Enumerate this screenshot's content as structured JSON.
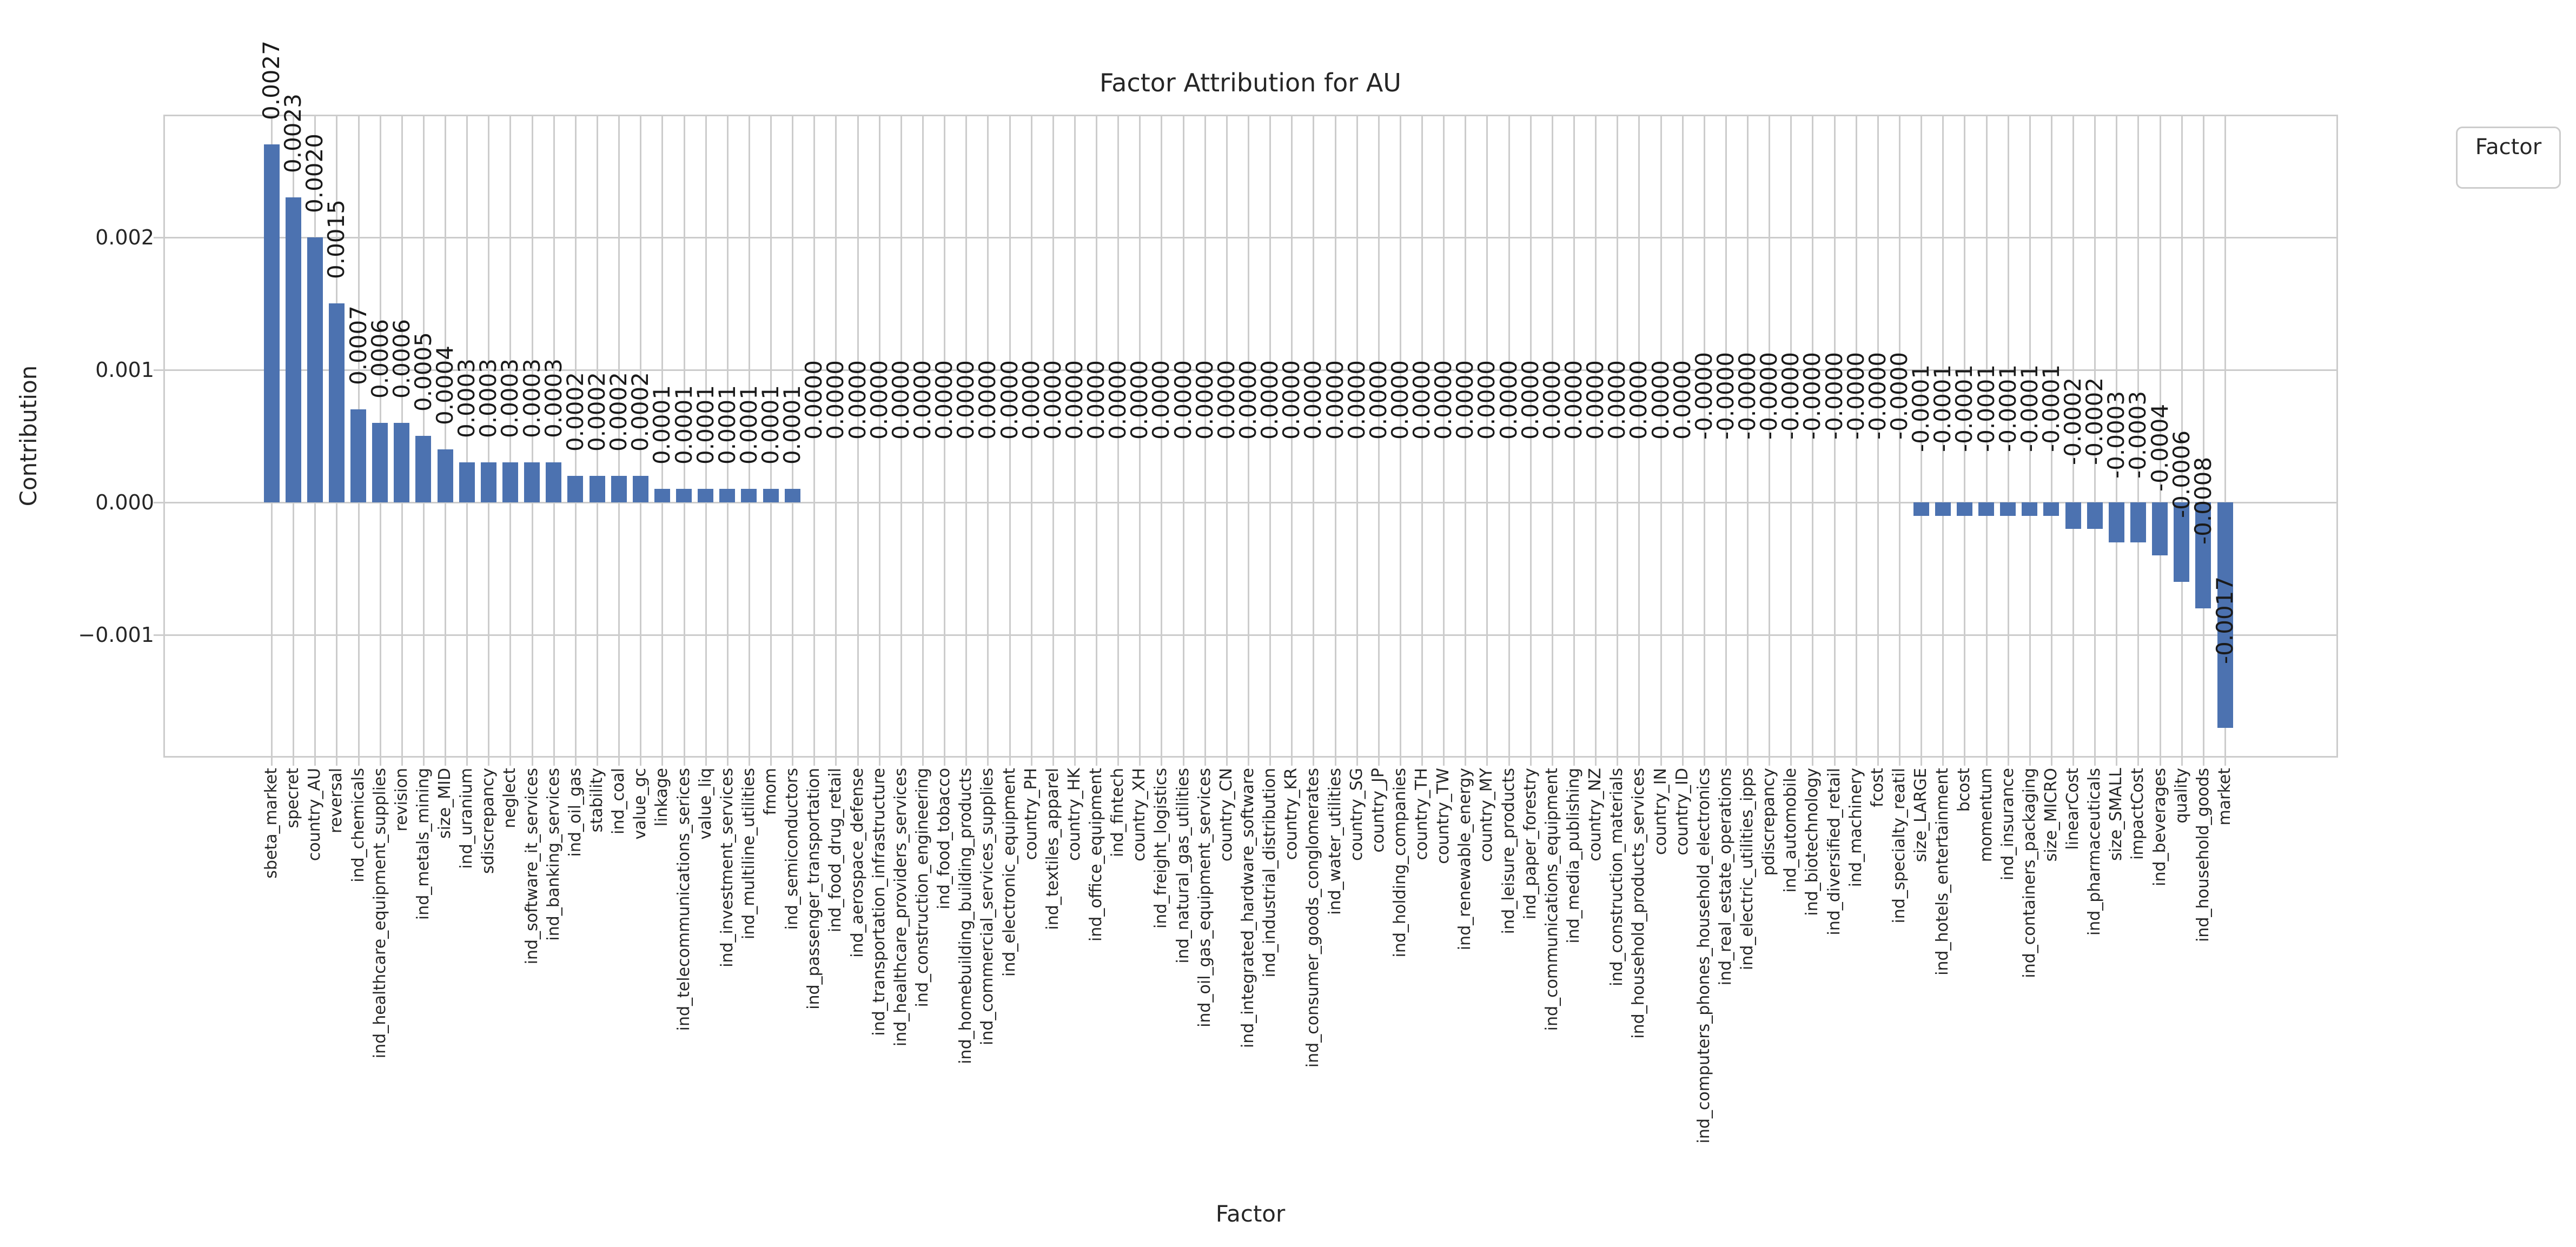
{
  "title": "Factor Attribution for AU",
  "xlabel": "Factor",
  "ylabel": "Contribution",
  "legend": {
    "title": "Factor"
  },
  "colors": {
    "bar": "#4C72B0",
    "grid": "#cccccc",
    "spine": "#cccccc",
    "text": "#262626"
  },
  "yticks": {
    "values": [
      0.002,
      0.001,
      0.0,
      -0.001
    ],
    "labels": [
      "0.002",
      "0.001",
      "0.000",
      "−0.001"
    ]
  },
  "chart_data": {
    "type": "bar",
    "title": "Factor Attribution for AU",
    "xlabel": "Factor",
    "ylabel": "Contribution",
    "ylim": [
      -0.00191,
      0.00291
    ],
    "grid": true,
    "legend_title": "Factor",
    "legend_position": "outside upper right",
    "bar_color": "#4C72B0",
    "xtick_rotation": 90,
    "value_label_rotation": 90,
    "categories": [
      "sbeta_market",
      "specret",
      "country_AU",
      "reversal",
      "ind_chemicals",
      "ind_healthcare_equipment_supplies",
      "revision",
      "ind_metals_mining",
      "size_MID",
      "ind_uranium",
      "sdiscrepancy",
      "neglect",
      "ind_software_it_services",
      "ind_banking_services",
      "ind_oil_gas",
      "stability",
      "ind_coal",
      "value_gc",
      "linkage",
      "ind_telecommunications_serices",
      "value_liq",
      "ind_investment_services",
      "ind_multiline_utilities",
      "fmom",
      "ind_semiconductors",
      "ind_passenger_transportation",
      "ind_food_drug_retail",
      "ind_aerospace_defense",
      "ind_transportation_infrastructure",
      "ind_healthcare_providers_services",
      "ind_construction_engineering",
      "ind_food_tobacco",
      "ind_homebuilding_building_products",
      "ind_commercial_services_supplies",
      "ind_electronic_equipment",
      "country_PH",
      "ind_textiles_apparel",
      "country_HK",
      "ind_office_equipment",
      "ind_fintech",
      "country_XH",
      "ind_freight_logistics",
      "ind_natural_gas_utilities",
      "ind_oil_gas_equipment_services",
      "country_CN",
      "ind_integrated_hardware_software",
      "ind_industrial_distribution",
      "country_KR",
      "ind_consumer_goods_conglomerates",
      "ind_water_utilities",
      "country_SG",
      "country_JP",
      "ind_holding_companies",
      "country_TH",
      "country_TW",
      "ind_renewable_energy",
      "country_MY",
      "ind_leisure_products",
      "ind_paper_forestry",
      "ind_communications_equipment",
      "ind_media_publishing",
      "country_NZ",
      "ind_construction_materials",
      "ind_household_products_services",
      "country_IN",
      "country_ID",
      "ind_computers_phones_household_electronics",
      "ind_real_estate_operations",
      "ind_electric_utilities_ipps",
      "pdiscrepancy",
      "ind_automobile",
      "ind_biotechnology",
      "ind_diversified_retail",
      "ind_machinery",
      "fcost",
      "ind_specialty_reatil",
      "size_LARGE",
      "ind_hotels_entertainment",
      "bcost",
      "momentum",
      "ind_insurance",
      "ind_containers_packaging",
      "size_MICRO",
      "linearCost",
      "ind_pharmaceuticals",
      "size_SMALL",
      "impactCost",
      "ind_beverages",
      "quality",
      "ind_household_goods",
      "market"
    ],
    "values": [
      0.0027,
      0.0023,
      0.002,
      0.0015,
      0.0007,
      0.0006,
      0.0006,
      0.0005,
      0.0004,
      0.0003,
      0.0003,
      0.0003,
      0.0003,
      0.0003,
      0.0002,
      0.0002,
      0.0002,
      0.0002,
      0.0001,
      0.0001,
      0.0001,
      0.0001,
      0.0001,
      0.0001,
      0.0001,
      0.0,
      0.0,
      0.0,
      0.0,
      0.0,
      0.0,
      0.0,
      0.0,
      0.0,
      0.0,
      0.0,
      0.0,
      0.0,
      0.0,
      0.0,
      0.0,
      0.0,
      0.0,
      0.0,
      0.0,
      0.0,
      0.0,
      0.0,
      0.0,
      0.0,
      0.0,
      0.0,
      0.0,
      0.0,
      0.0,
      0.0,
      0.0,
      0.0,
      0.0,
      0.0,
      0.0,
      0.0,
      0.0,
      0.0,
      0.0,
      0.0,
      -0.0,
      -0.0,
      -0.0,
      -0.0,
      -0.0,
      -0.0,
      -0.0,
      -0.0,
      -0.0,
      -0.0,
      -0.0001,
      -0.0001,
      -0.0001,
      -0.0001,
      -0.0001,
      -0.0001,
      -0.0001,
      -0.0002,
      -0.0002,
      -0.0003,
      -0.0003,
      -0.0004,
      -0.0006,
      -0.0008,
      -0.0017
    ],
    "value_labels": [
      "0.0027",
      "0.0023",
      "0.0020",
      "0.0015",
      "0.0007",
      "0.0006",
      "0.0006",
      "0.0005",
      "0.0004",
      "0.0003",
      "0.0003",
      "0.0003",
      "0.0003",
      "0.0003",
      "0.0002",
      "0.0002",
      "0.0002",
      "0.0002",
      "0.0001",
      "0.0001",
      "0.0001",
      "0.0001",
      "0.0001",
      "0.0001",
      "0.0001",
      "0.0000",
      "0.0000",
      "0.0000",
      "0.0000",
      "0.0000",
      "0.0000",
      "0.0000",
      "0.0000",
      "0.0000",
      "0.0000",
      "0.0000",
      "0.0000",
      "0.0000",
      "0.0000",
      "0.0000",
      "0.0000",
      "0.0000",
      "0.0000",
      "0.0000",
      "0.0000",
      "0.0000",
      "0.0000",
      "0.0000",
      "0.0000",
      "0.0000",
      "0.0000",
      "0.0000",
      "0.0000",
      "0.0000",
      "0.0000",
      "0.0000",
      "0.0000",
      "0.0000",
      "0.0000",
      "0.0000",
      "0.0000",
      "0.0000",
      "0.0000",
      "0.0000",
      "0.0000",
      "0.0000",
      "-0.0000",
      "-0.0000",
      "-0.0000",
      "-0.0000",
      "-0.0000",
      "-0.0000",
      "-0.0000",
      "-0.0000",
      "-0.0000",
      "-0.0000",
      "-0.0001",
      "-0.0001",
      "-0.0001",
      "-0.0001",
      "-0.0001",
      "-0.0001",
      "-0.0001",
      "-0.0002",
      "-0.0002",
      "-0.0003",
      "-0.0003",
      "-0.0004",
      "-0.0006",
      "-0.0008",
      "-0.0017"
    ]
  }
}
